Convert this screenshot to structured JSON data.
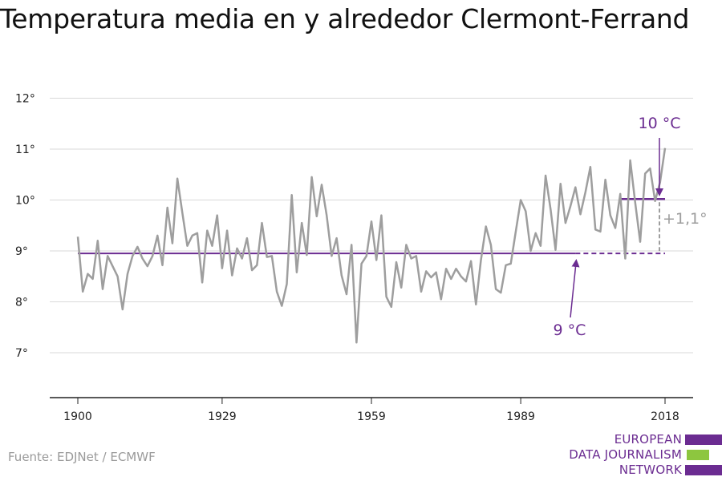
{
  "title": "Temperatura media en y alrededor Clermont-Ferrand",
  "source": "Fuente: EDJNet / ECMWF",
  "logo": {
    "lines": [
      "EUROPEAN",
      "DATA JOURNALISM",
      "NETWORK"
    ],
    "colors": [
      "#6b2c91",
      "#8dc63f",
      "#6b2c91"
    ]
  },
  "colors": {
    "series": "#9e9e9e",
    "accent": "#6b2c91",
    "grid": "#d9d9d9",
    "axis": "#222222",
    "diff": "#9e9e9e"
  },
  "annotations": {
    "recent_avg_label": "10 °C",
    "baseline_label": "9 °C",
    "diff_label": "+1,1°"
  },
  "chart_data": {
    "type": "line",
    "title": "Temperatura media en y alrededor Clermont-Ferrand",
    "xlabel": "",
    "ylabel": "",
    "xlim": [
      1900,
      2018
    ],
    "ylim": [
      6.0,
      12.0
    ],
    "x_ticks": [
      1900,
      1929,
      1959,
      1989,
      2018
    ],
    "y_ticks": [
      7,
      8,
      9,
      10,
      11,
      12
    ],
    "y_tick_labels": [
      "7°",
      "8°",
      "9°",
      "10°",
      "11°",
      "12°"
    ],
    "grid": true,
    "series": [
      {
        "x": [
          1900,
          1901,
          1902,
          1903,
          1904,
          1905,
          1906,
          1907,
          1908,
          1909,
          1910,
          1911,
          1912,
          1913,
          1914,
          1915,
          1916,
          1917,
          1918,
          1919,
          1920,
          1921,
          1922,
          1923,
          1924,
          1925,
          1926,
          1927,
          1928,
          1929,
          1930,
          1931,
          1932,
          1933,
          1934,
          1935,
          1936,
          1937,
          1938,
          1939,
          1940,
          1941,
          1942,
          1943,
          1944,
          1945,
          1946,
          1947,
          1948,
          1949,
          1950,
          1951,
          1952,
          1953,
          1954,
          1955,
          1956,
          1957,
          1958,
          1959,
          1960,
          1961,
          1962,
          1963,
          1964,
          1965,
          1966,
          1967,
          1968,
          1969,
          1970,
          1971,
          1972,
          1973,
          1974,
          1975,
          1976,
          1977,
          1978,
          1979,
          1980,
          1981,
          1982,
          1983,
          1984,
          1985,
          1986,
          1987,
          1988,
          1989,
          1990,
          1991,
          1992,
          1993,
          1994,
          1995,
          1996,
          1997,
          1998,
          1999,
          2000,
          2001,
          2002,
          2003,
          2004,
          2005,
          2006,
          2007,
          2008,
          2009,
          2010,
          2011,
          2012,
          2013,
          2014,
          2015,
          2016,
          2017,
          2018
        ],
        "values": [
          9.28,
          8.2,
          8.55,
          8.45,
          9.2,
          8.25,
          8.9,
          8.7,
          8.5,
          7.85,
          8.55,
          8.9,
          9.08,
          8.85,
          8.7,
          8.9,
          9.3,
          8.72,
          9.85,
          9.15,
          10.42,
          9.75,
          9.1,
          9.3,
          9.35,
          8.38,
          9.4,
          9.1,
          9.7,
          8.66,
          9.4,
          8.52,
          9.05,
          8.85,
          9.25,
          8.62,
          8.72,
          9.55,
          8.88,
          8.9,
          8.2,
          7.92,
          8.35,
          10.1,
          8.58,
          9.55,
          8.92,
          10.45,
          9.68,
          10.3,
          9.7,
          8.9,
          9.25,
          8.52,
          8.15,
          9.12,
          7.2,
          8.75,
          8.9,
          9.58,
          8.82,
          9.7,
          8.1,
          7.9,
          8.78,
          8.28,
          9.12,
          8.85,
          8.9,
          8.2,
          8.6,
          8.48,
          8.58,
          8.05,
          8.65,
          8.45,
          8.65,
          8.5,
          8.4,
          8.8,
          7.95,
          8.82,
          9.48,
          9.12,
          8.25,
          8.18,
          8.72,
          8.75,
          9.38,
          10.0,
          9.78,
          9.0,
          9.35,
          9.1,
          10.48,
          9.82,
          9.02,
          10.32,
          9.55,
          9.88,
          10.25,
          9.72,
          10.15,
          10.65,
          9.42,
          9.38,
          10.4,
          9.7,
          9.45,
          10.12,
          8.85,
          10.78,
          9.95,
          9.18,
          10.52,
          10.62,
          9.98,
          10.35,
          11.02
        ]
      }
    ],
    "reference_lines": [
      {
        "label": "9 °C",
        "value": 8.95,
        "x_start": 1900,
        "x_end": 2000,
        "dashed_until": 2018
      },
      {
        "label": "10 °C",
        "value": 10.02,
        "x_start": 2009,
        "x_end": 2018
      }
    ]
  }
}
